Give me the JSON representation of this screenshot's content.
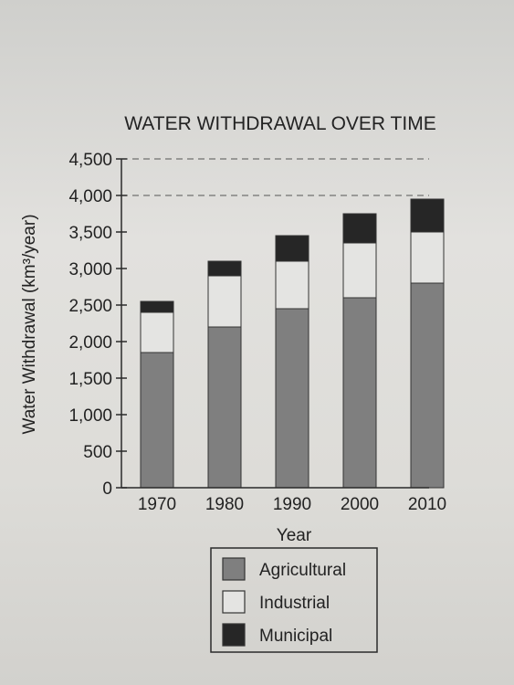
{
  "chart_data": {
    "type": "bar",
    "stacked": true,
    "title": "WATER WITHDRAWAL OVER TIME",
    "xlabel": "Year",
    "ylabel": "Water Withdrawal (km³/year)",
    "categories": [
      "1970",
      "1980",
      "1990",
      "2000",
      "2010"
    ],
    "series": [
      {
        "name": "Agricultural",
        "color": "#7f7f7f",
        "values": [
          1850,
          2200,
          2450,
          2600,
          2800
        ]
      },
      {
        "name": "Industrial",
        "color": "#e4e4e2",
        "values": [
          550,
          700,
          650,
          750,
          700
        ]
      },
      {
        "name": "Municipal",
        "color": "#262626",
        "values": [
          150,
          200,
          350,
          400,
          450
        ]
      }
    ],
    "ylim": [
      0,
      4500
    ],
    "yticks": [
      "0",
      "500",
      "1,000",
      "1,500",
      "2,000",
      "2,500",
      "3,000",
      "3,500",
      "4,000",
      "4,500"
    ],
    "ytick_values": [
      0,
      500,
      1000,
      1500,
      2000,
      2500,
      3000,
      3500,
      4000,
      4500
    ],
    "grid": "dashed lines at 4,000 and 4,500 only",
    "legend_position": "bottom-center"
  }
}
